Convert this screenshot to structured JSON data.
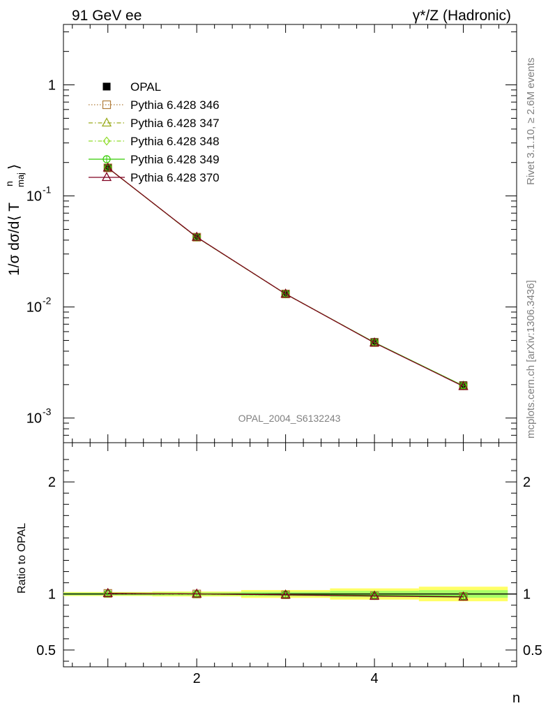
{
  "header": {
    "left": "91 GeV ee",
    "right": "γ*/Z (Hadronic)"
  },
  "side_labels": {
    "rivet": "Rivet 3.1.10, ≥ 2.6M events",
    "mcplots": "mcplots.cern.ch [arXiv:1306.3436]"
  },
  "watermark": "OPAL_2004_S6132243",
  "chart_data": [
    {
      "type": "line",
      "panel": "main",
      "ylabel": "1/σ dσ/d⟨ T^n_maj ⟩",
      "yscale": "log",
      "ylim": [
        0.0006,
        3.5
      ],
      "xlim": [
        0.5,
        5.6
      ],
      "ytick_labels": [
        "10^-3",
        "10^-2",
        "10^-1",
        "1"
      ],
      "ytick_values": [
        0.001,
        0.01,
        0.1,
        1
      ],
      "x": [
        1,
        2,
        3,
        4,
        5
      ],
      "series": [
        {
          "name": "OPAL",
          "style": "data",
          "color": "#000000",
          "values": [
            0.178,
            0.0425,
            0.0132,
            0.00485,
            0.00198
          ]
        },
        {
          "name": "Pythia 6.428 346",
          "style": "dotted",
          "marker": "square",
          "color": "#b07c3a",
          "values": [
            0.179,
            0.0425,
            0.0131,
            0.00478,
            0.00195
          ]
        },
        {
          "name": "Pythia 6.428 347",
          "style": "dashdot",
          "marker": "triangle",
          "color": "#9aab1c",
          "values": [
            0.179,
            0.0424,
            0.0131,
            0.00477,
            0.00194
          ]
        },
        {
          "name": "Pythia 6.428 348",
          "style": "dashdot",
          "marker": "diamond",
          "color": "#8fdc2a",
          "values": [
            0.179,
            0.0425,
            0.0131,
            0.00478,
            0.00195
          ]
        },
        {
          "name": "Pythia 6.428 349",
          "style": "solid",
          "marker": "circleplus",
          "color": "#33cc00",
          "values": [
            0.179,
            0.0425,
            0.0131,
            0.00479,
            0.00195
          ]
        },
        {
          "name": "Pythia 6.428 370",
          "style": "solid",
          "marker": "triangle",
          "color": "#800020",
          "values": [
            0.179,
            0.0426,
            0.0131,
            0.00476,
            0.00193
          ]
        }
      ]
    },
    {
      "type": "line",
      "panel": "ratio",
      "xlabel": "n",
      "ylabel": "Ratio to OPAL",
      "ylim": [
        0.35,
        2.35
      ],
      "xlim": [
        0.5,
        5.6
      ],
      "ytick_labels": [
        "0.5",
        "1",
        "2"
      ],
      "ytick_values": [
        0.5,
        1,
        2
      ],
      "xtick_labels": [
        "2",
        "4"
      ],
      "xtick_values": [
        2,
        4
      ],
      "x": [
        1,
        2,
        3,
        4,
        5
      ],
      "band_stat": {
        "color": "#ffff66",
        "halfwidth": [
          0.018,
          0.022,
          0.035,
          0.05,
          0.065
        ]
      },
      "band_total": {
        "color": "#a8ff66",
        "halfwidth": [
          0.012,
          0.014,
          0.02,
          0.028,
          0.034
        ]
      },
      "series": [
        {
          "name": "Pythia 6.428 346",
          "color": "#b07c3a",
          "values": [
            1.005,
            1.0,
            0.993,
            0.985,
            0.978
          ]
        },
        {
          "name": "Pythia 6.428 347",
          "color": "#9aab1c",
          "values": [
            1.005,
            0.998,
            0.992,
            0.983,
            0.975
          ]
        },
        {
          "name": "Pythia 6.428 348",
          "color": "#8fdc2a",
          "values": [
            1.005,
            0.999,
            0.993,
            0.985,
            0.977
          ]
        },
        {
          "name": "Pythia 6.428 349",
          "color": "#33cc00",
          "values": [
            1.005,
            1.0,
            0.994,
            0.987,
            0.979
          ]
        },
        {
          "name": "Pythia 6.428 370",
          "color": "#800020",
          "values": [
            1.006,
            1.001,
            0.992,
            0.982,
            0.974
          ]
        }
      ]
    }
  ]
}
